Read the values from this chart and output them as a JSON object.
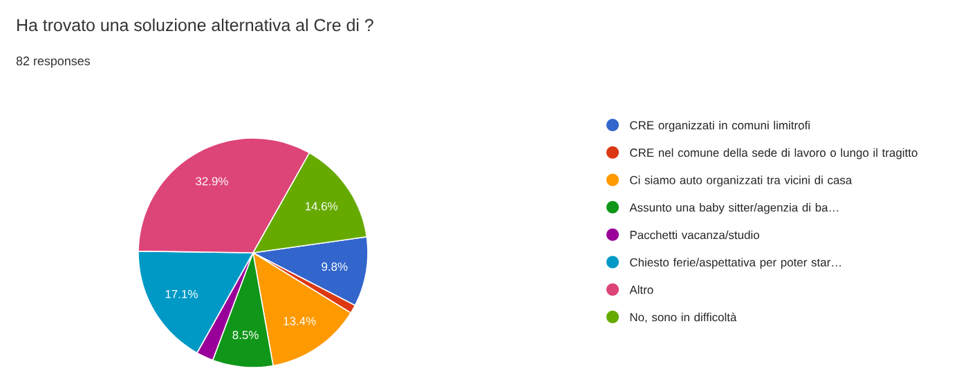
{
  "chart_data": {
    "type": "pie",
    "title": "Ha trovato una soluzione alternativa al Cre di ?",
    "subtitle": "82 responses",
    "categories": [
      "CRE organizzati in comuni limitrofi",
      "CRE nel comune della sede di lavoro o lungo il tragitto",
      "Ci siamo auto organizzati tra vicini di casa",
      "Assunto una baby sitter/agenzia di ba…",
      "Pacchetti vacanza/studio",
      "Chiesto ferie/aspettativa per poter star…",
      "Altro",
      "No, sono in difficoltà"
    ],
    "values": [
      9.8,
      1.2,
      13.4,
      8.5,
      2.4,
      17.1,
      32.9,
      14.6
    ],
    "value_labels": [
      "9.8%",
      null,
      "13.4%",
      "8.5%",
      null,
      "17.1%",
      "32.9%",
      "14.6%"
    ],
    "colors": [
      "#3366cc",
      "#dc3912",
      "#ff9900",
      "#109618",
      "#990099",
      "#0099c6",
      "#dd4477",
      "#66aa00"
    ],
    "legend": "right"
  }
}
